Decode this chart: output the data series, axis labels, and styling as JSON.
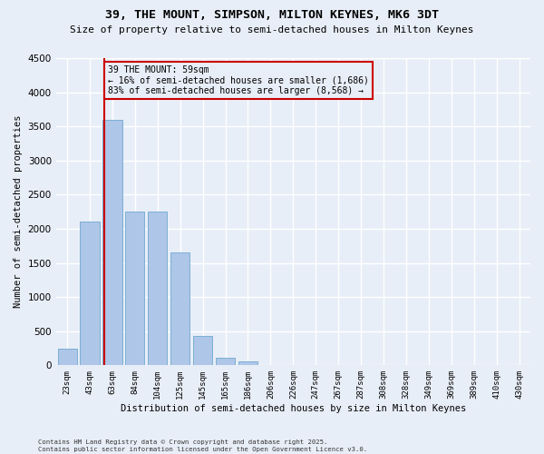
{
  "title": "39, THE MOUNT, SIMPSON, MILTON KEYNES, MK6 3DT",
  "subtitle": "Size of property relative to semi-detached houses in Milton Keynes",
  "xlabel": "Distribution of semi-detached houses by size in Milton Keynes",
  "ylabel": "Number of semi-detached properties",
  "footnote": "Contains HM Land Registry data © Crown copyright and database right 2025.\nContains public sector information licensed under the Open Government Licence v3.0.",
  "bar_labels": [
    "23sqm",
    "43sqm",
    "63sqm",
    "84sqm",
    "104sqm",
    "125sqm",
    "145sqm",
    "165sqm",
    "186sqm",
    "206sqm",
    "226sqm",
    "247sqm",
    "267sqm",
    "287sqm",
    "308sqm",
    "328sqm",
    "349sqm",
    "369sqm",
    "389sqm",
    "410sqm",
    "430sqm"
  ],
  "bar_values": [
    250,
    2100,
    3600,
    2250,
    2250,
    1650,
    430,
    110,
    55,
    0,
    0,
    0,
    0,
    0,
    0,
    0,
    0,
    0,
    0,
    0,
    0
  ],
  "bar_color": "#aec6e8",
  "bar_edge_color": "#7bafd4",
  "annotation_box_color": "#cc0000",
  "line_color": "#cc0000",
  "ylim": [
    0,
    4500
  ],
  "yticks": [
    0,
    500,
    1000,
    1500,
    2000,
    2500,
    3000,
    3500,
    4000,
    4500
  ],
  "background_color": "#e8eef7",
  "grid_color": "#ffffff",
  "pct_smaller": 16,
  "pct_larger": 83,
  "count_smaller": 1686,
  "count_larger": 8568,
  "line_bar_index": 1.65
}
